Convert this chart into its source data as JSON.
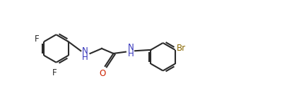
{
  "bg": "#ffffff",
  "lc": "#2a2a2a",
  "Nc": "#3333bb",
  "Oc": "#cc2200",
  "Fc": "#2a2a2a",
  "Brc": "#886600",
  "lw": 1.5,
  "fs": 8.5,
  "r": 0.42,
  "xlim": [
    0.0,
    8.2
  ],
  "ylim": [
    0.3,
    3.5
  ]
}
